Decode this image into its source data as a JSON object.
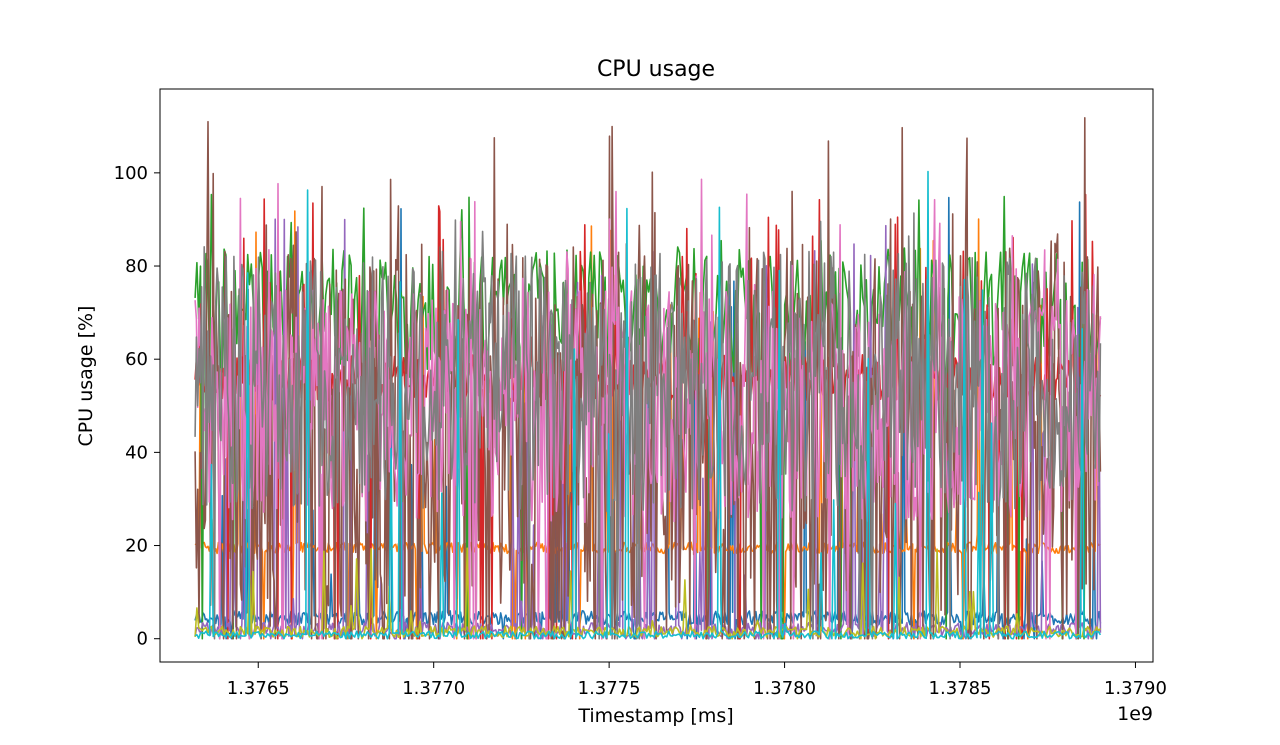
{
  "chart_data": {
    "type": "line",
    "title": "CPU usage",
    "xlabel": "Timestamp [ms]",
    "ylabel": "CPU usage [%]",
    "x_offset_label": "1e9",
    "xlim": [
      1376220000000,
      1379050000000
    ],
    "ylim": [
      -5,
      118
    ],
    "x_ticks": [
      {
        "value": 1376500000000,
        "label": "1.3765"
      },
      {
        "value": 1377000000000,
        "label": "1.3770"
      },
      {
        "value": 1377500000000,
        "label": "1.3775"
      },
      {
        "value": 1378000000000,
        "label": "1.3780"
      },
      {
        "value": 1378500000000,
        "label": "1.3785"
      },
      {
        "value": 1379000000000,
        "label": "1.3790"
      }
    ],
    "y_ticks": [
      {
        "value": 0,
        "label": "0"
      },
      {
        "value": 20,
        "label": "20"
      },
      {
        "value": 40,
        "label": "40"
      },
      {
        "value": 60,
        "label": "60"
      },
      {
        "value": 80,
        "label": "80"
      },
      {
        "value": 100,
        "label": "100"
      }
    ],
    "grid": false,
    "legend": "none",
    "x_range": [
      1376320000000,
      1378900000000
    ],
    "series": [
      {
        "color": "#1f77b4",
        "base": 4.5,
        "spread": 1.5,
        "spike_prob": 0.06,
        "spike_max": 96,
        "points": 700
      },
      {
        "color": "#ff7f0e",
        "base": 19.5,
        "spread": 1.2,
        "spike_prob": 0.07,
        "spike_max": 95,
        "points": 700
      },
      {
        "color": "#2ca02c",
        "base": 70,
        "spread": 14,
        "spike_prob": 0.05,
        "spike_max": 96,
        "points": 500
      },
      {
        "color": "#d62728",
        "base": 56,
        "spread": 5,
        "spike_prob": 0.08,
        "spike_max": 96,
        "points": 800
      },
      {
        "color": "#9467bd",
        "base": 2,
        "spread": 1.5,
        "spike_prob": 0.08,
        "spike_max": 92,
        "points": 600
      },
      {
        "color": "#8c564b",
        "base": 40,
        "spread": 45,
        "spike_prob": 0.1,
        "spike_max": 112,
        "points": 700
      },
      {
        "color": "#e377c2",
        "base": 50,
        "spread": 25,
        "spike_prob": 0.07,
        "spike_max": 99,
        "points": 700
      },
      {
        "color": "#7f7f7f",
        "base": 55,
        "spread": 28,
        "spike_prob": 0.05,
        "spike_max": 92,
        "points": 700
      },
      {
        "color": "#bcbd22",
        "base": 1.5,
        "spread": 1.2,
        "spike_prob": 0.04,
        "spike_max": 20,
        "points": 500
      },
      {
        "color": "#17becf",
        "base": 0.8,
        "spread": 0.8,
        "spike_prob": 0.03,
        "spike_max": 103,
        "points": 500
      }
    ]
  }
}
